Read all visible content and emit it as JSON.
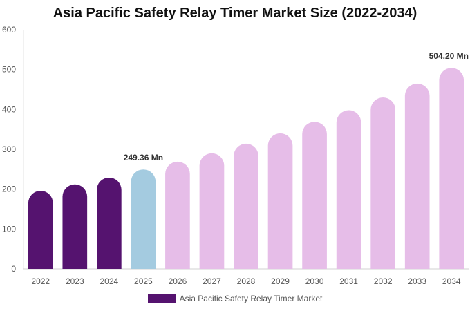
{
  "chart_data": {
    "type": "bar",
    "title": "Asia Pacific Safety Relay Timer Market Size (2022-2034)",
    "xlabel": "",
    "ylabel": "",
    "ylim": [
      0,
      600
    ],
    "yticks": [
      "0",
      "100",
      "200",
      "300",
      "400",
      "500",
      "600"
    ],
    "categories": [
      "2022",
      "2023",
      "2024",
      "2025",
      "2026",
      "2027",
      "2028",
      "2029",
      "2030",
      "2031",
      "2032",
      "2033",
      "2034"
    ],
    "series": [
      {
        "name": "Asia Pacific Safety Relay Timer Market",
        "values": [
          196,
          212,
          229,
          249.36,
          269,
          290,
          314,
          340,
          369,
          398,
          430,
          465,
          504.2
        ]
      }
    ],
    "bar_colors": [
      "#55136f",
      "#55136f",
      "#55136f",
      "#a4cbe0",
      "#e6bde8",
      "#e6bde8",
      "#e6bde8",
      "#e6bde8",
      "#e6bde8",
      "#e6bde8",
      "#e6bde8",
      "#e6bde8",
      "#e6bde8"
    ],
    "annotations": [
      {
        "index": 3,
        "text": "249.36 Mn"
      },
      {
        "index": 12,
        "text": "504.20 Mn"
      }
    ],
    "grid": false,
    "legend_position": "bottom",
    "legend_color": "#55136f"
  }
}
